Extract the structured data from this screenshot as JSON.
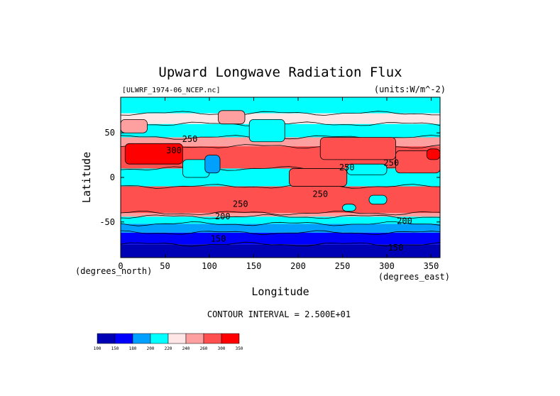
{
  "chart_data": {
    "type": "heatmap",
    "title": "Upward Longwave Radiation Flux",
    "dataset_label": "[ULWRF_1974-06_NCEP.nc]",
    "units_label": "(units:W/m^-2)",
    "xlabel": "Longitude",
    "ylabel": "Latitude",
    "x_unit_label": "(degrees_east)",
    "y_unit_label": "(degrees_north)",
    "xlim": [
      0,
      360
    ],
    "ylim": [
      -90,
      90
    ],
    "x_ticks": [
      0,
      50,
      100,
      150,
      200,
      250,
      300,
      350
    ],
    "y_ticks": [
      -50,
      0,
      50
    ],
    "contour_interval_text": "CONTOUR INTERVAL = 2.500E+01",
    "contour_labels": [
      {
        "text": "300",
        "lon": 60,
        "lat": 27
      },
      {
        "text": "250",
        "lon": 78,
        "lat": 40
      },
      {
        "text": "250",
        "lon": 255,
        "lat": 8
      },
      {
        "text": "250",
        "lon": 305,
        "lat": 13
      },
      {
        "text": "250",
        "lon": 225,
        "lat": -22
      },
      {
        "text": "250",
        "lon": 135,
        "lat": -33
      },
      {
        "text": "200",
        "lon": 115,
        "lat": -47
      },
      {
        "text": "200",
        "lon": 320,
        "lat": -52
      },
      {
        "text": "150",
        "lon": 110,
        "lat": -72
      },
      {
        "text": "150",
        "lon": 310,
        "lat": -82
      }
    ],
    "colorbar": {
      "levels": [
        "100",
        "150",
        "180",
        "200",
        "220",
        "240",
        "260",
        "300",
        "350"
      ],
      "colors": [
        "#0000b4",
        "#0000ff",
        "#00a0ff",
        "#00ffff",
        "#ffe6e6",
        "#ffa0a0",
        "#ff5050",
        "#ff0000"
      ]
    },
    "bands": [
      {
        "lat_min": -90,
        "lat_max": -75,
        "level_index": 0
      },
      {
        "lat_min": -75,
        "lat_max": -62,
        "level_index": 1
      },
      {
        "lat_min": -62,
        "lat_max": -52,
        "level_index": 2
      },
      {
        "lat_min": -52,
        "lat_max": -44,
        "level_index": 3
      },
      {
        "lat_min": -44,
        "lat_max": -40,
        "level_index": 5
      },
      {
        "lat_min": -40,
        "lat_max": -10,
        "level_index": 6
      },
      {
        "lat_min": -10,
        "lat_max": 10,
        "level_index": 3
      },
      {
        "lat_min": 10,
        "lat_max": 35,
        "level_index": 6
      },
      {
        "lat_min": 35,
        "lat_max": 45,
        "level_index": 5
      },
      {
        "lat_min": 45,
        "lat_max": 60,
        "level_index": 3
      },
      {
        "lat_min": 60,
        "lat_max": 72,
        "level_index": 4
      },
      {
        "lat_min": 72,
        "lat_max": 90,
        "level_index": 3
      }
    ],
    "patches": [
      {
        "lon_min": 5,
        "lon_max": 70,
        "lat_min": 15,
        "lat_max": 38,
        "level_index": 7
      },
      {
        "lon_min": 70,
        "lon_max": 100,
        "lat_min": 0,
        "lat_max": 20,
        "level_index": 3
      },
      {
        "lon_min": 95,
        "lon_max": 112,
        "lat_min": 5,
        "lat_max": 25,
        "level_index": 2
      },
      {
        "lon_min": 225,
        "lon_max": 310,
        "lat_min": 20,
        "lat_max": 45,
        "level_index": 6
      },
      {
        "lon_min": 255,
        "lon_max": 300,
        "lat_min": 3,
        "lat_max": 15,
        "level_index": 3
      },
      {
        "lon_min": 190,
        "lon_max": 255,
        "lat_min": -10,
        "lat_max": 10,
        "level_index": 6
      },
      {
        "lon_min": 250,
        "lon_max": 265,
        "lat_min": -38,
        "lat_max": -30,
        "level_index": 3
      },
      {
        "lon_min": 280,
        "lon_max": 300,
        "lat_min": -30,
        "lat_max": -20,
        "level_index": 3
      },
      {
        "lon_min": 310,
        "lon_max": 360,
        "lat_min": 5,
        "lat_max": 30,
        "level_index": 6
      },
      {
        "lon_min": 345,
        "lon_max": 360,
        "lat_min": 20,
        "lat_max": 32,
        "level_index": 7
      },
      {
        "lon_min": 145,
        "lon_max": 185,
        "lat_min": 40,
        "lat_max": 65,
        "level_index": 3
      },
      {
        "lon_min": 0,
        "lon_max": 30,
        "lat_min": 50,
        "lat_max": 65,
        "level_index": 5
      },
      {
        "lon_min": 110,
        "lon_max": 140,
        "lat_min": 60,
        "lat_max": 75,
        "level_index": 5
      }
    ]
  }
}
